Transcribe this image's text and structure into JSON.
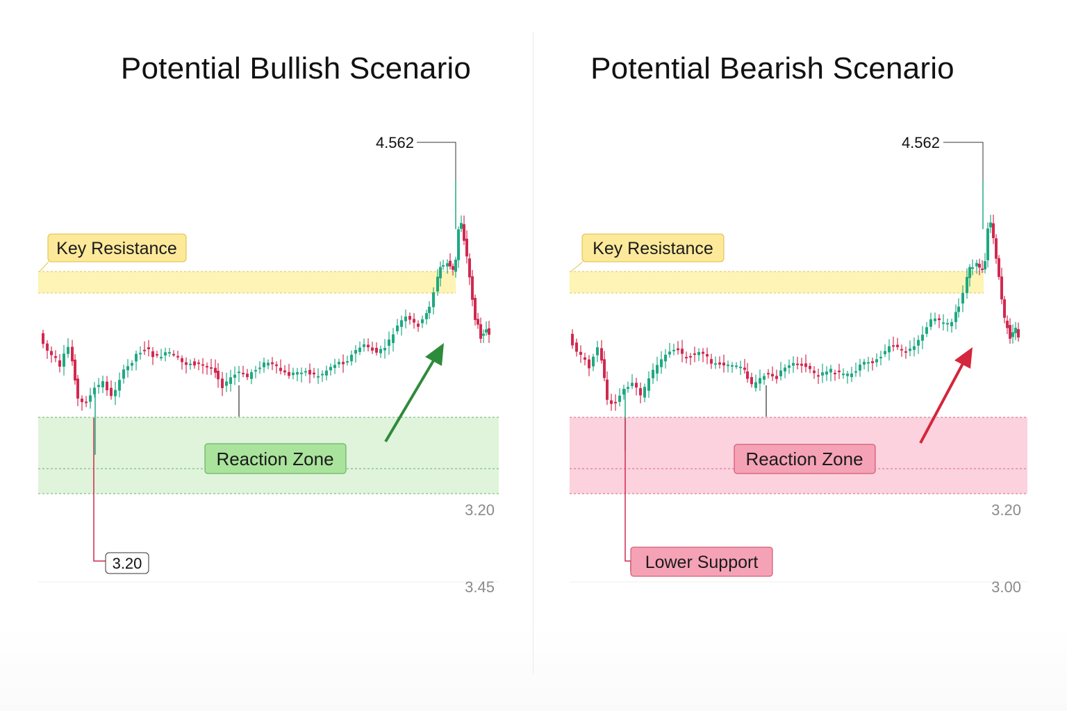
{
  "colors": {
    "up": "#1fa882",
    "down": "#d1294f",
    "resistance_fill": "#fdf4b5",
    "resistance_line": "#e3c54a",
    "bull_zone_fill": "#dcf3d6",
    "bull_zone_line": "#6cab6e",
    "bear_zone_fill": "#fbd0dc",
    "bear_zone_line": "#d5687f",
    "bull_arrow": "#2e8b3c",
    "bear_arrow": "#d4263c",
    "axis_text": "#8a8a8a"
  },
  "chart_data": [
    {
      "type": "candlestick",
      "title": "Potential Bullish Scenario",
      "peak_label": "4.562",
      "resistance": {
        "label": "Key Resistance"
      },
      "reaction_zone": {
        "label": "Reaction Zone"
      },
      "low_marker": {
        "label": "3.20"
      },
      "y_tick_labels": [
        "3.20",
        "3.45"
      ],
      "scenario_arrow": "up"
    },
    {
      "type": "candlestick",
      "title": "Potential Bearish Scenario",
      "peak_label": "4.562",
      "resistance": {
        "label": "Key Resistance"
      },
      "reaction_zone": {
        "label": "Reaction Zone"
      },
      "low_marker": {
        "label": "Lower Support"
      },
      "y_tick_labels": [
        "3.20",
        "3.00"
      ],
      "scenario_arrow": "up"
    }
  ]
}
